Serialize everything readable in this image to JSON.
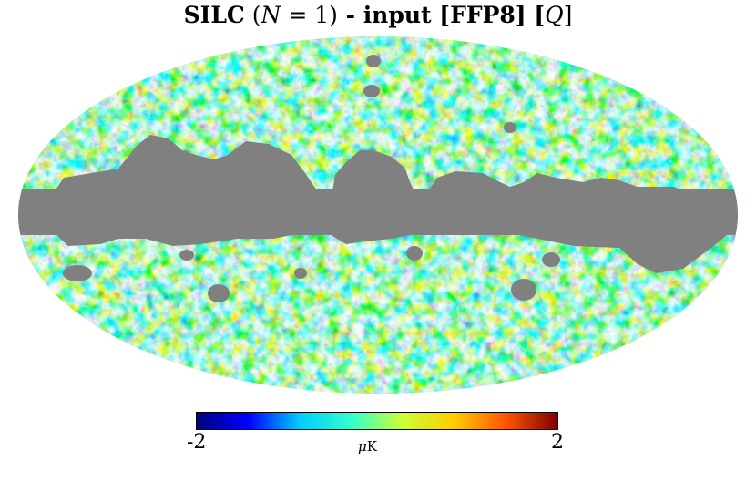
{
  "title": {
    "prefix": "SILC",
    "math_open": "(",
    "math_var": "N",
    "math_rest": " = 1)",
    "suffix": " - input [FFP8] [",
    "stokes": "Q",
    "close": "]"
  },
  "colorbar": {
    "min_label": "-2",
    "max_label": "2",
    "unit_mu": "μ",
    "unit_rest": "K",
    "stops": [
      "#000080",
      "#0000ff",
      "#00ccff",
      "#33ffcc",
      "#ccff33",
      "#ffcc00",
      "#ff5500",
      "#800000"
    ]
  },
  "map": {
    "projection": "Mollweide",
    "mask_color": "#808080"
  }
}
